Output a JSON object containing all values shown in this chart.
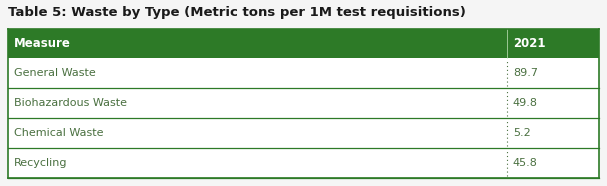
{
  "title": "Table 5: Waste by Type (Metric tons per 1M test requisitions)",
  "header": [
    "Measure",
    "2021"
  ],
  "rows": [
    [
      "General Waste",
      "89.7"
    ],
    [
      "Biohazardous Waste",
      "49.8"
    ],
    [
      "Chemical Waste",
      "5.2"
    ],
    [
      "Recycling",
      "45.8"
    ]
  ],
  "header_bg_color": "#2d7a27",
  "header_text_color": "#ffffff",
  "row_text_color": "#4a7040",
  "title_color": "#1a1a1a",
  "border_color": "#2d7a27",
  "divider_color": "#4a7040",
  "bg_color": "#ffffff",
  "outer_bg_color": "#f5f5f5",
  "title_fontsize": 9.5,
  "header_fontsize": 8.5,
  "row_fontsize": 8.0,
  "col_split": 0.835
}
